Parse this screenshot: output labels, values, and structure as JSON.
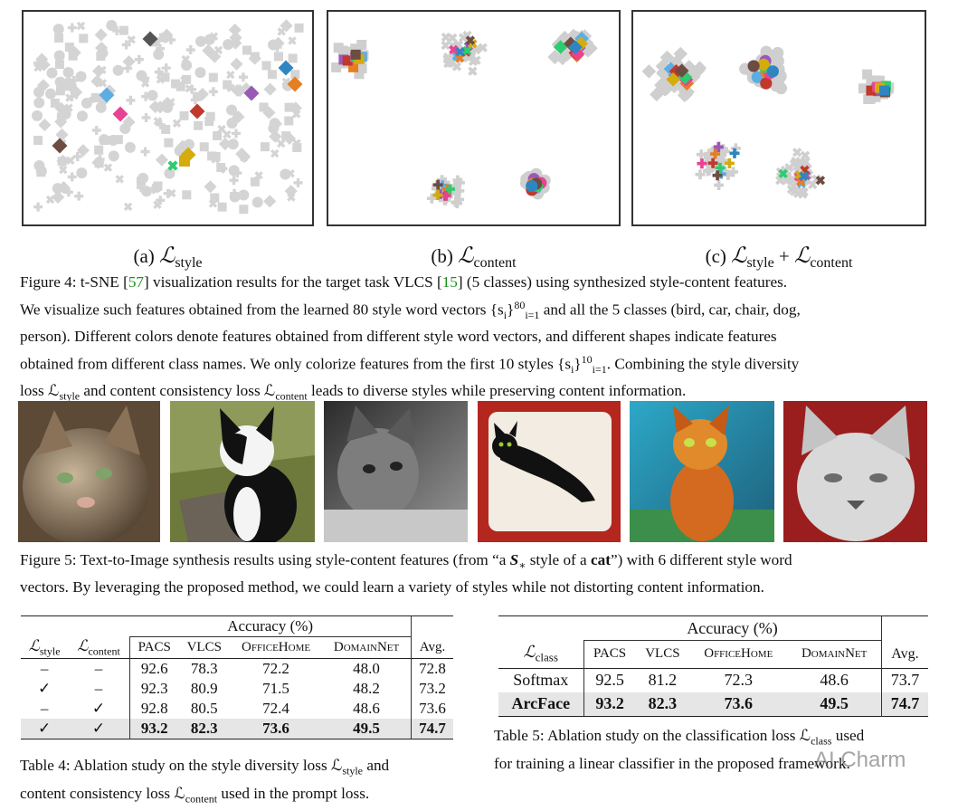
{
  "figure4": {
    "subcaptions": {
      "a": {
        "prefix": "(a) ",
        "L": "ℒ",
        "sub": "style"
      },
      "b": {
        "prefix": "(b) ",
        "L": "ℒ",
        "sub": "content"
      },
      "c": {
        "prefix": "(c) ",
        "L1": "ℒ",
        "sub1": "style",
        "plus": " + ",
        "L2": "ℒ",
        "sub2": "content"
      }
    },
    "caption": {
      "p1": "Figure 4: t-SNE [",
      "ref57": "57",
      "p2": "] visualization results for the target task VLCS [",
      "ref15": "15",
      "p3": "] (5 classes) using synthesized style-content features.",
      "l2a": "We visualize such features obtained from the learned 80 style word vectors {s",
      "l2sub": "i",
      "l2b": "}",
      "l2sup": "80",
      "l2sub2": "i=1",
      "l2c": " and all the 5 classes (bird, car, chair, dog,",
      "l3": "person). Different colors denote features obtained from different style word vectors, and different shapes indicate features",
      "l4a": "obtained from different class names. We only colorize features from the first 10 styles {s",
      "l4sub": "i",
      "l4b": "}",
      "l4sup": "10",
      "l4sub2": "i=1",
      "l4c": ". Combining the style diversity",
      "l5a": "loss ℒ",
      "l5sub1": "style",
      "l5b": " and content consistency loss ℒ",
      "l5sub2": "content",
      "l5c": " leads to diverse styles while preserving content information."
    },
    "colors": [
      "#9b59b6",
      "#5dade2",
      "#e67e22",
      "#c0392b",
      "#e84393",
      "#2ecc71",
      "#d4ac0d",
      "#6d4c41",
      "#2e86c1",
      "#555555"
    ]
  },
  "figure5": {
    "caption": {
      "l1a": "Figure 5: Text-to-Image synthesis results using style-content features (from “a ",
      "S": "S",
      "Ssub": "∗",
      "l1b": " style of a ",
      "cat": "cat",
      "l1c": "”) with 6 different style word",
      "l2": "vectors. By leveraging the proposed method, we could learn a variety of styles while not distorting content information."
    }
  },
  "table4": {
    "acc_header": "Accuracy (%)",
    "col_Lstyle": {
      "L": "ℒ",
      "sub": "style"
    },
    "col_Lcontent": {
      "L": "ℒ",
      "sub": "content"
    },
    "datasets": [
      "PACS",
      "VLCS",
      "OfficeHome",
      "DomainNet"
    ],
    "avg": "Avg.",
    "rows": [
      {
        "s": "–",
        "c": "–",
        "v": [
          "92.6",
          "78.3",
          "72.2",
          "48.0"
        ],
        "avg": "72.8"
      },
      {
        "s": "✓",
        "c": "–",
        "v": [
          "92.3",
          "80.9",
          "71.5",
          "48.2"
        ],
        "avg": "73.2"
      },
      {
        "s": "–",
        "c": "✓",
        "v": [
          "92.8",
          "80.5",
          "72.4",
          "48.6"
        ],
        "avg": "73.6"
      },
      {
        "s": "✓",
        "c": "✓",
        "v": [
          "93.2",
          "82.3",
          "73.6",
          "49.5"
        ],
        "avg": "74.7"
      }
    ],
    "caption": {
      "l1a": "Table 4: Ablation study on the style diversity loss ℒ",
      "l1sub": "style",
      "l1b": " and",
      "l2a": "content consistency loss ℒ",
      "l2sub": "content",
      "l2b": " used in the prompt loss."
    }
  },
  "table5": {
    "acc_header": "Accuracy (%)",
    "col_Lclass": {
      "L": "ℒ",
      "sub": "class"
    },
    "datasets": [
      "PACS",
      "VLCS",
      "OfficeHome",
      "DomainNet"
    ],
    "avg": "Avg.",
    "rows": [
      {
        "name": "Softmax",
        "v": [
          "92.5",
          "81.2",
          "72.3",
          "48.6"
        ],
        "avg": "73.7"
      },
      {
        "name": "ArcFace",
        "v": [
          "93.2",
          "82.3",
          "73.6",
          "49.5"
        ],
        "avg": "74.7"
      }
    ],
    "caption": {
      "l1a": "Table 5: Ablation study on the classification loss ℒ",
      "l1sub": "class",
      "l1b": " used",
      "l2": "for training a linear classifier in the proposed framework."
    }
  },
  "watermark": "AI Charm"
}
